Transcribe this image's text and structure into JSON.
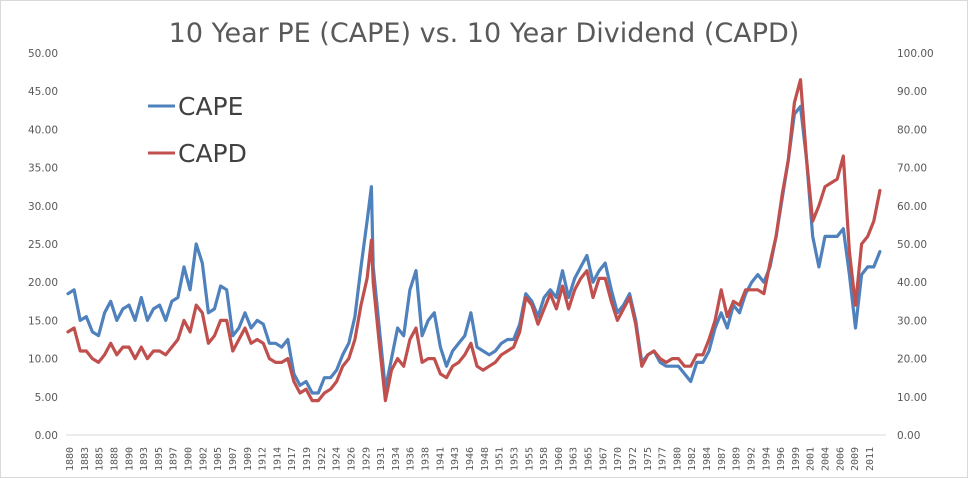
{
  "chart_data": {
    "type": "line",
    "title": "10 Year PE (CAPE) vs. 10 Year Dividend (CAPD)",
    "xlabel": "",
    "ylabel": "",
    "y2label": "",
    "ylim": [
      0,
      50
    ],
    "y2lim": [
      0,
      100
    ],
    "xlim": [
      1880,
      2014
    ],
    "grid": true,
    "legend_position": "top-left",
    "yticks": [
      "0.00",
      "5.00",
      "10.00",
      "15.00",
      "20.00",
      "25.00",
      "30.00",
      "35.00",
      "40.00",
      "45.00",
      "50.00"
    ],
    "y2ticks": [
      "0.00",
      "10.00",
      "20.00",
      "30.00",
      "40.00",
      "50.00",
      "60.00",
      "70.00",
      "80.00",
      "90.00",
      "100.00"
    ],
    "xticks": [
      "1880",
      "1883",
      "1885",
      "1888",
      "1890",
      "1893",
      "1895",
      "1897",
      "1900",
      "1902",
      "1905",
      "1907",
      "1909",
      "1912",
      "1914",
      "1917",
      "1919",
      "1922",
      "1924",
      "1926",
      "1929",
      "1931",
      "1934",
      "1936",
      "1938",
      "1941",
      "1943",
      "1946",
      "1948",
      "1951",
      "1953",
      "1955",
      "1958",
      "1960",
      "1963",
      "1965",
      "1967",
      "1970",
      "1972",
      "1975",
      "1977",
      "1980",
      "1982",
      "1984",
      "1987",
      "1989",
      "1992",
      "1994",
      "1996",
      "1999",
      "2001",
      "2004",
      "2006",
      "2009",
      "2011"
    ],
    "x": [
      1880,
      1881,
      1882,
      1883,
      1884,
      1885,
      1886,
      1887,
      1888,
      1889,
      1890,
      1891,
      1892,
      1893,
      1894,
      1895,
      1896,
      1897,
      1898,
      1899,
      1900,
      1901,
      1902,
      1903,
      1904,
      1905,
      1906,
      1907,
      1908,
      1909,
      1910,
      1911,
      1912,
      1913,
      1914,
      1915,
      1916,
      1917,
      1918,
      1919,
      1920,
      1921,
      1922,
      1923,
      1924,
      1925,
      1926,
      1927,
      1928,
      1929,
      1929.7,
      1930,
      1931,
      1932,
      1933,
      1934,
      1935,
      1936,
      1937,
      1938,
      1939,
      1940,
      1941,
      1942,
      1943,
      1944,
      1945,
      1946,
      1947,
      1948,
      1949,
      1950,
      1951,
      1952,
      1953,
      1954,
      1955,
      1956,
      1957,
      1958,
      1959,
      1960,
      1961,
      1962,
      1963,
      1964,
      1965,
      1966,
      1967,
      1968,
      1969,
      1970,
      1971,
      1972,
      1973,
      1974,
      1975,
      1976,
      1977,
      1978,
      1979,
      1980,
      1981,
      1982,
      1983,
      1984,
      1985,
      1986,
      1987,
      1988,
      1989,
      1990,
      1991,
      1992,
      1993,
      1994,
      1995,
      1996,
      1997,
      1998,
      1999,
      2000,
      2001,
      2002,
      2003,
      2004,
      2005,
      2006,
      2007,
      2008,
      2009,
      2010,
      2011,
      2012,
      2013
    ],
    "series": [
      {
        "name": "CAPE",
        "axis": "left",
        "color": "#4f81bd",
        "values": [
          18.5,
          19,
          15,
          15.5,
          13.5,
          13,
          16,
          17.5,
          15,
          16.5,
          17,
          15,
          18,
          15,
          16.5,
          17,
          15,
          17.5,
          18,
          22,
          19,
          25,
          22.5,
          16,
          16.5,
          19.5,
          19,
          13,
          14,
          16,
          14,
          15,
          14.5,
          12,
          12,
          11.5,
          12.5,
          8,
          6.5,
          7,
          5.5,
          5.5,
          7.5,
          7.5,
          8.5,
          10.5,
          12,
          15.5,
          22,
          28,
          32.5,
          22,
          14,
          6,
          10,
          14,
          13,
          19,
          21.5,
          13,
          15,
          16,
          11.5,
          9,
          11,
          12,
          13,
          16,
          11.5,
          11,
          10.5,
          11,
          12,
          12.5,
          12.5,
          14.5,
          18.5,
          17.5,
          15.5,
          18,
          19,
          18,
          21.5,
          18,
          20.5,
          22,
          23.5,
          20,
          21.5,
          22.5,
          19,
          16,
          17,
          18.5,
          15,
          9.5,
          10.5,
          11,
          9.5,
          9,
          9,
          9,
          8,
          7,
          9.5,
          9.5,
          11,
          14,
          16,
          14,
          17,
          16,
          18.5,
          20,
          21,
          20,
          22,
          26,
          31,
          36,
          42,
          43,
          36,
          26,
          22,
          26,
          26,
          26,
          27,
          21,
          14,
          21,
          22,
          22,
          24
        ]
      },
      {
        "name": "CAPD",
        "axis": "right",
        "color": "#c0504d",
        "values": [
          27,
          28,
          22,
          22,
          20,
          19,
          21,
          24,
          21,
          23,
          23,
          20,
          23,
          20,
          22,
          22,
          21,
          23,
          25,
          30,
          27,
          34,
          32,
          24,
          26,
          30,
          30,
          22,
          25,
          28,
          24,
          25,
          24,
          20,
          19,
          19,
          20,
          14,
          11,
          12,
          9,
          9,
          11,
          12,
          14,
          18,
          20,
          25,
          34,
          41,
          51,
          40,
          24,
          9,
          17,
          20,
          18,
          25,
          28,
          19,
          20,
          20,
          16,
          15,
          18,
          19,
          21,
          24,
          18,
          17,
          18,
          19,
          21,
          22,
          23,
          27,
          36,
          34,
          29,
          33,
          37,
          33,
          39,
          33,
          38,
          41,
          43,
          36,
          41,
          41,
          35,
          30,
          33,
          36,
          29,
          18,
          21,
          22,
          20,
          19,
          20,
          20,
          18,
          18,
          21,
          21,
          25,
          30,
          38,
          31,
          35,
          34,
          38,
          38,
          38,
          37,
          45,
          52,
          63,
          72,
          87,
          93,
          72,
          56,
          60,
          65,
          66,
          67,
          73,
          48,
          34,
          50,
          52,
          56,
          64
        ]
      }
    ]
  }
}
